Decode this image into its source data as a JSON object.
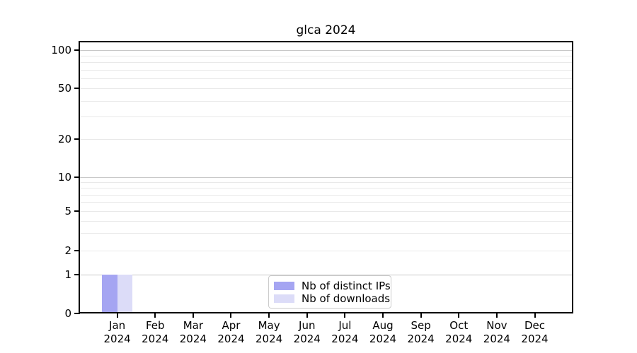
{
  "title": "glca 2024",
  "chart_data": {
    "type": "bar",
    "title": "glca 2024",
    "categories": [
      "Jan 2024",
      "Feb 2024",
      "Mar 2024",
      "Apr 2024",
      "May 2024",
      "Jun 2024",
      "Jul 2024",
      "Aug 2024",
      "Sep 2024",
      "Oct 2024",
      "Nov 2024",
      "Dec 2024"
    ],
    "series": [
      {
        "name": "Nb of distinct IPs",
        "color": "#a5a5f2",
        "values": [
          1,
          0,
          0,
          0,
          0,
          0,
          0,
          0,
          0,
          0,
          0,
          0
        ]
      },
      {
        "name": "Nb of downloads",
        "color": "#dcdcf8",
        "values": [
          1,
          0,
          0,
          0,
          0,
          0,
          0,
          0,
          0,
          0,
          0,
          0
        ]
      }
    ],
    "yscale": "symlog",
    "ylim": [
      0,
      115
    ],
    "y_tick_labels": [
      "0",
      "1",
      "2",
      "5",
      "10",
      "20",
      "50",
      "100"
    ],
    "y_minor_ticks": [
      3,
      4,
      6,
      7,
      8,
      9,
      30,
      40,
      60,
      70,
      80,
      90
    ],
    "grid": "horizontal",
    "legend": {
      "position": "lower center",
      "entries": [
        "Nb of distinct IPs",
        "Nb of downloads"
      ]
    },
    "colors": {
      "major_grid": "#c8c8c8",
      "minor_grid": "#e9e9e9",
      "axis": "#000000",
      "legend_border": "#cccccc"
    }
  }
}
